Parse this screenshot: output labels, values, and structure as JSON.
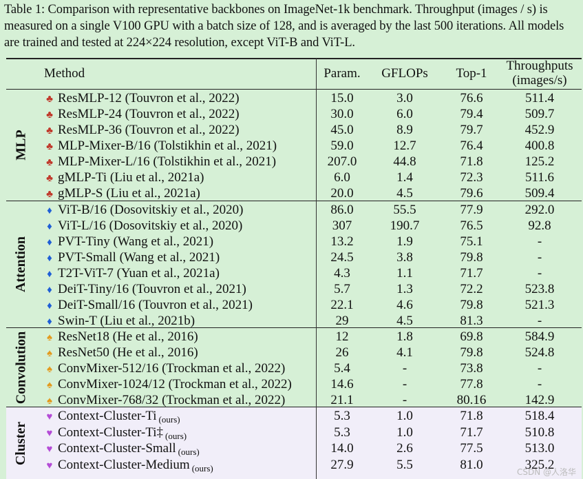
{
  "caption": "Table 1: Comparison with representative backbones on ImageNet-1k benchmark. Throughput (images / s) is measured on a single V100 GPU with a batch size of 128, and is averaged by the last 500 iterations. All models are trained and tested at 224×224 resolution, except ViT-B and ViT-L.",
  "header": {
    "method": "Method",
    "param": "Param.",
    "gflops": "GFLOPs",
    "top1": "Top-1",
    "throughputs": "Throughputs",
    "throughputs_unit": "(images/s)"
  },
  "groups": {
    "mlp": "MLP",
    "attention": "Attention",
    "convolution": "Convolution",
    "cluster": "Cluster"
  },
  "symbols": {
    "club": "♣",
    "diamond": "♦",
    "spade": "♠",
    "heart": "♥"
  },
  "colors": {
    "club": "#c0392b",
    "diamond": "#1f5fd6",
    "spade": "#e39a1e",
    "heart": "#b44bd6"
  },
  "rows": [
    {
      "method": "ResMLP-12 (Touvron et al., 2022)",
      "param": "15.0",
      "gflops": "3.0",
      "top1": "76.6",
      "thr": "511.4"
    },
    {
      "method": "ResMLP-24 (Touvron et al., 2022)",
      "param": "30.0",
      "gflops": "6.0",
      "top1": "79.4",
      "thr": "509.7"
    },
    {
      "method": "ResMLP-36 (Touvron et al., 2022)",
      "param": "45.0",
      "gflops": "8.9",
      "top1": "79.7",
      "thr": "452.9"
    },
    {
      "method": "MLP-Mixer-B/16 (Tolstikhin et al., 2021)",
      "param": "59.0",
      "gflops": "12.7",
      "top1": "76.4",
      "thr": "400.8"
    },
    {
      "method": "MLP-Mixer-L/16 (Tolstikhin et al., 2021)",
      "param": "207.0",
      "gflops": "44.8",
      "top1": "71.8",
      "thr": "125.2"
    },
    {
      "method": "gMLP-Ti (Liu et al., 2021a)",
      "param": "6.0",
      "gflops": "1.4",
      "top1": "72.3",
      "thr": "511.6"
    },
    {
      "method": "gMLP-S (Liu et al., 2021a)",
      "param": "20.0",
      "gflops": "4.5",
      "top1": "79.6",
      "thr": "509.4"
    },
    {
      "method": "ViT-B/16 (Dosovitskiy et al., 2020)",
      "param": "86.0",
      "gflops": "55.5",
      "top1": "77.9",
      "thr": "292.0"
    },
    {
      "method": "ViT-L/16 (Dosovitskiy et al., 2020)",
      "param": "307",
      "gflops": "190.7",
      "top1": "76.5",
      "thr": "92.8"
    },
    {
      "method": "PVT-Tiny (Wang et al., 2021)",
      "param": "13.2",
      "gflops": "1.9",
      "top1": "75.1",
      "thr": "-"
    },
    {
      "method": "PVT-Small (Wang et al., 2021)",
      "param": "24.5",
      "gflops": "3.8",
      "top1": "79.8",
      "thr": "-"
    },
    {
      "method": "T2T-ViT-7  (Yuan et al., 2021a)",
      "param": "4.3",
      "gflops": "1.1",
      "top1": "71.7",
      "thr": "-"
    },
    {
      "method": "DeiT-Tiny/16 (Touvron et al., 2021)",
      "param": "5.7",
      "gflops": "1.3",
      "top1": "72.2",
      "thr": "523.8"
    },
    {
      "method": "DeiT-Small/16 (Touvron et al., 2021)",
      "param": "22.1",
      "gflops": "4.6",
      "top1": "79.8",
      "thr": "521.3"
    },
    {
      "method": "Swin-T (Liu et al., 2021b)",
      "param": "29",
      "gflops": "4.5",
      "top1": "81.3",
      "thr": "-"
    },
    {
      "method": "ResNet18 (He et al., 2016)",
      "param": "12",
      "gflops": "1.8",
      "top1": "69.8",
      "thr": "584.9"
    },
    {
      "method": "ResNet50 (He et al., 2016)",
      "param": "26",
      "gflops": "4.1",
      "top1": "79.8",
      "thr": "524.8"
    },
    {
      "method": "ConvMixer-512/16 (Trockman et al., 2022)",
      "param": "5.4",
      "gflops": "-",
      "top1": "73.8",
      "thr": "-"
    },
    {
      "method": "ConvMixer-1024/12 (Trockman et al., 2022)",
      "param": "14.6",
      "gflops": "-",
      "top1": "77.8",
      "thr": "-"
    },
    {
      "method": "ConvMixer-768/32 (Trockman et al., 2022)",
      "param": "21.1",
      "gflops": "-",
      "top1": "80.16",
      "thr": "142.9"
    },
    {
      "method": "Context-Cluster-Ti",
      "sub": "(ours)",
      "param": "5.3",
      "gflops": "1.0",
      "top1": "71.8",
      "thr": "518.4"
    },
    {
      "method": "Context-Cluster-Ti‡",
      "sub": "(ours)",
      "param": "5.3",
      "gflops": "1.0",
      "top1": "71.7",
      "thr": "510.8"
    },
    {
      "method": "Context-Cluster-Small",
      "sub": "(ours)",
      "param": "14.0",
      "gflops": "2.6",
      "top1": "77.5",
      "thr": "513.0"
    },
    {
      "method": "Context-Cluster-Medium",
      "sub": "(ours)",
      "param": "27.9",
      "gflops": "5.5",
      "top1": "81.0",
      "thr": "325.2"
    }
  ],
  "watermark": "CSDN @人洛华"
}
